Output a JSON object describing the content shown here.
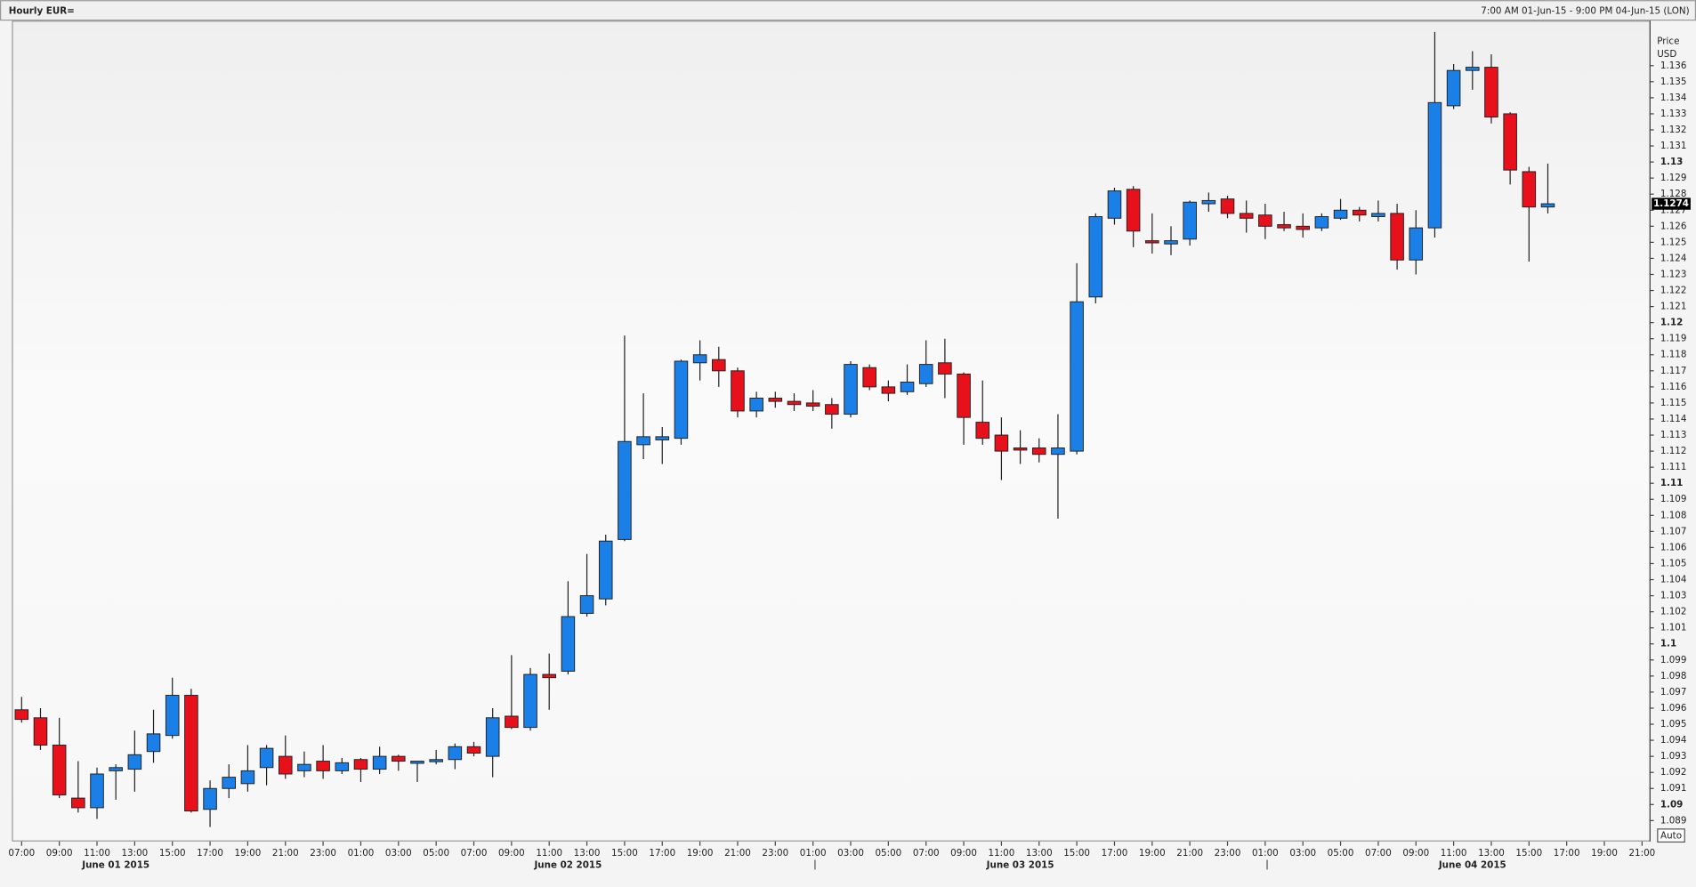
{
  "chart_data": {
    "type": "candlestick",
    "title": "Hourly EUR=",
    "range_label": "7:00 AM 01-Jun-15 - 9:00 PM 04-Jun-15 (LON)",
    "y_axis_title": "Price",
    "y_axis_unit": "USD",
    "scale_button": "Auto",
    "last_price": 1.1274,
    "up_color": "#1a7fe6",
    "down_color": "#e8101a",
    "open": [
      1.0959,
      1.0954,
      1.0937,
      1.0904,
      1.0898,
      1.0921,
      1.0922,
      1.0933,
      1.0943,
      1.0968,
      1.0897,
      1.091,
      1.0913,
      1.0923,
      1.093,
      1.0921,
      1.0927,
      1.0921,
      1.0928,
      1.0922,
      1.093,
      1.0926,
      1.0927,
      1.0928,
      1.0936,
      1.093,
      1.0955,
      1.0948,
      1.0981,
      1.0983,
      1.1019,
      1.1028,
      1.1065,
      1.1124,
      1.1127,
      1.1128,
      1.1175,
      1.1177,
      1.117,
      1.1145,
      1.1153,
      1.1151,
      1.115,
      1.1149,
      1.1143,
      1.1172,
      1.116,
      1.1157,
      1.1162,
      1.1175,
      1.1168,
      1.1138,
      1.113,
      1.1122,
      1.1122,
      1.1118,
      1.112,
      1.1216,
      1.1265,
      1.1283,
      1.1251,
      1.1249,
      1.1252,
      1.1274,
      1.1277,
      1.1268,
      1.1267,
      1.1261,
      1.126,
      1.1259,
      1.1265,
      1.127,
      1.1266,
      1.1268,
      1.1239,
      1.1259,
      1.1335,
      1.1357,
      1.1359,
      1.133,
      1.1294,
      1.1272
    ],
    "high": [
      1.0967,
      1.096,
      1.0954,
      1.0927,
      1.0923,
      1.0925,
      1.0946,
      1.0959,
      1.0979,
      1.0972,
      1.0915,
      1.0925,
      1.0937,
      1.0937,
      1.0943,
      1.0933,
      1.0937,
      1.0929,
      1.0929,
      1.0936,
      1.0931,
      1.0927,
      1.0934,
      1.0938,
      1.0939,
      1.096,
      1.0993,
      1.0985,
      1.0994,
      1.1039,
      1.1056,
      1.1068,
      1.1192,
      1.1156,
      1.1135,
      1.1177,
      1.1189,
      1.1185,
      1.1172,
      1.1157,
      1.1157,
      1.1156,
      1.1158,
      1.1153,
      1.1176,
      1.1174,
      1.1164,
      1.1174,
      1.1189,
      1.119,
      1.1169,
      1.1164,
      1.1141,
      1.1133,
      1.1128,
      1.1143,
      1.1237,
      1.1268,
      1.1284,
      1.1285,
      1.1268,
      1.126,
      1.1276,
      1.1281,
      1.1279,
      1.1276,
      1.1274,
      1.1269,
      1.1268,
      1.1268,
      1.1277,
      1.1272,
      1.1276,
      1.1274,
      1.127,
      1.1381,
      1.1361,
      1.1369,
      1.1367,
      1.1331,
      1.1297,
      1.1299
    ],
    "low": [
      1.0951,
      1.0934,
      1.0904,
      1.0895,
      1.0891,
      1.0903,
      1.0908,
      1.0926,
      1.0941,
      1.0895,
      1.0886,
      1.0904,
      1.0908,
      1.0912,
      1.0916,
      1.0917,
      1.0916,
      1.0919,
      1.0914,
      1.0919,
      1.0921,
      1.0914,
      1.0925,
      1.0922,
      1.093,
      1.0917,
      1.0947,
      1.0946,
      1.0959,
      1.0981,
      1.1017,
      1.1024,
      1.1064,
      1.1115,
      1.1112,
      1.1124,
      1.1164,
      1.116,
      1.1141,
      1.1141,
      1.1147,
      1.1145,
      1.1145,
      1.1134,
      1.1141,
      1.1158,
      1.1151,
      1.1155,
      1.116,
      1.1153,
      1.1124,
      1.1124,
      1.1102,
      1.1112,
      1.1113,
      1.1078,
      1.1118,
      1.1212,
      1.1261,
      1.1247,
      1.1243,
      1.1242,
      1.1248,
      1.1269,
      1.1265,
      1.1256,
      1.1252,
      1.1257,
      1.1253,
      1.1257,
      1.1264,
      1.1263,
      1.1263,
      1.1233,
      1.123,
      1.1253,
      1.1333,
      1.1345,
      1.1324,
      1.1286,
      1.1238,
      1.1268
    ],
    "close": [
      1.0953,
      1.0937,
      1.0906,
      1.0898,
      1.0919,
      1.0923,
      1.0931,
      1.0944,
      1.0968,
      1.0896,
      1.091,
      1.0917,
      1.0921,
      1.0935,
      1.0919,
      1.0925,
      1.0921,
      1.0926,
      1.0922,
      1.093,
      1.0927,
      1.0927,
      1.0928,
      1.0936,
      1.0932,
      1.0954,
      1.0948,
      1.0981,
      1.0979,
      1.1017,
      1.103,
      1.1064,
      1.1126,
      1.1129,
      1.1129,
      1.1176,
      1.118,
      1.117,
      1.1145,
      1.1153,
      1.1151,
      1.1149,
      1.1148,
      1.1143,
      1.1174,
      1.116,
      1.1156,
      1.1163,
      1.1174,
      1.1168,
      1.1141,
      1.1128,
      1.112,
      1.1121,
      1.1118,
      1.1122,
      1.1213,
      1.1266,
      1.1282,
      1.1257,
      1.125,
      1.1251,
      1.1275,
      1.1276,
      1.1268,
      1.1265,
      1.126,
      1.1259,
      1.1258,
      1.1266,
      1.127,
      1.1267,
      1.1268,
      1.1239,
      1.1259,
      1.1337,
      1.1357,
      1.1359,
      1.1328,
      1.1295,
      1.1272,
      1.1274
    ],
    "xticks": [
      "07:00",
      "09:00",
      "11:00",
      "13:00",
      "15:00",
      "17:00",
      "19:00",
      "21:00",
      "23:00",
      "01:00",
      "03:00",
      "05:00",
      "07:00",
      "09:00",
      "11:00",
      "13:00",
      "15:00",
      "17:00",
      "19:00",
      "21:00",
      "23:00",
      "01:00",
      "03:00",
      "05:00",
      "07:00",
      "09:00",
      "11:00",
      "13:00",
      "15:00",
      "17:00",
      "19:00",
      "21:00",
      "23:00",
      "01:00",
      "03:00",
      "05:00",
      "07:00",
      "09:00",
      "11:00",
      "13:00",
      "15:00",
      "17:00",
      "19:00",
      "21:00"
    ],
    "dates": [
      "June 01 2015",
      "June 02 2015",
      "June 03 2015",
      "June 04 2015"
    ],
    "ylim": [
      1.0877,
      1.1388
    ],
    "yticks": [
      1.089,
      1.09,
      1.091,
      1.092,
      1.093,
      1.094,
      1.095,
      1.096,
      1.097,
      1.098,
      1.099,
      1.1,
      1.101,
      1.102,
      1.103,
      1.104,
      1.105,
      1.106,
      1.107,
      1.108,
      1.109,
      1.11,
      1.111,
      1.112,
      1.113,
      1.114,
      1.115,
      1.116,
      1.117,
      1.118,
      1.119,
      1.12,
      1.121,
      1.122,
      1.123,
      1.124,
      1.125,
      1.126,
      1.127,
      1.128,
      1.129,
      1.13,
      1.131,
      1.132,
      1.133,
      1.134,
      1.135,
      1.136
    ]
  }
}
